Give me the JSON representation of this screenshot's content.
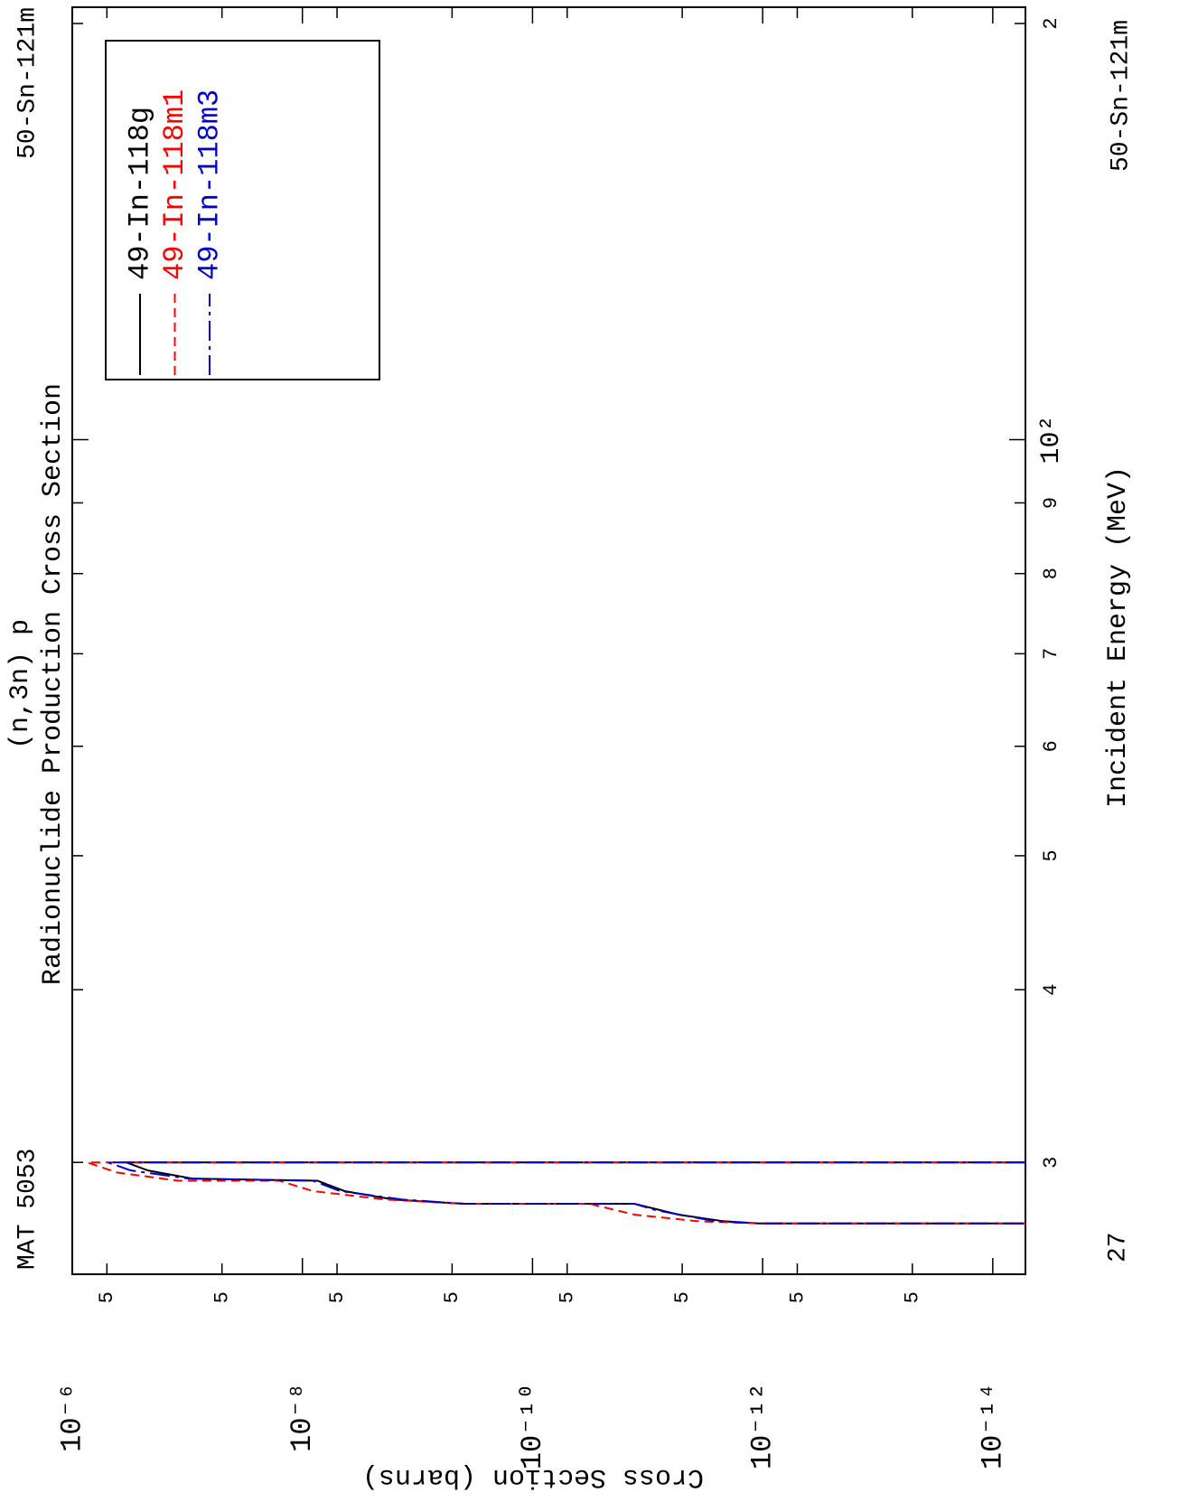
{
  "chart_data": {
    "type": "line",
    "header_left": "MAT 5053",
    "header_right": "50-Sn-121m",
    "subtitle": "(n,3n) p",
    "title": "Radionuclide Production Cross Section",
    "x_label": "Incident Energy (MeV)",
    "y_label": "Cross Section (barns)",
    "footer_left": "27",
    "footer_right": "50-Sn-121m",
    "log_x": true,
    "log_y": true,
    "legend": "top right",
    "xlim": [
      24.9,
      205.5
    ],
    "ylim": [
      5.2e-15,
      1e-06
    ],
    "xticks": [
      {
        "value": 30,
        "label": "3"
      },
      {
        "value": 40,
        "label": "4"
      },
      {
        "value": 50,
        "label": "5"
      },
      {
        "value": 60,
        "label": "6"
      },
      {
        "value": 70,
        "label": "7"
      },
      {
        "value": 80,
        "label": "8"
      },
      {
        "value": 90,
        "label": "9"
      },
      {
        "value": 100,
        "label": "10²"
      },
      {
        "value": 200,
        "label": "2"
      }
    ],
    "yticks": [
      {
        "value": 1e-06,
        "label": "10⁻⁶"
      },
      {
        "value": 5e-07,
        "label": "5"
      },
      {
        "value": 5e-08,
        "label": "5"
      },
      {
        "value": 1e-08,
        "label": "10⁻⁸"
      },
      {
        "value": 5e-09,
        "label": "5"
      },
      {
        "value": 5e-10,
        "label": "5"
      },
      {
        "value": 1e-10,
        "label": "10⁻¹⁰"
      },
      {
        "value": 5e-11,
        "label": "5"
      },
      {
        "value": 5e-12,
        "label": "5"
      },
      {
        "value": 1e-12,
        "label": "10⁻¹²"
      },
      {
        "value": 5e-13,
        "label": "5"
      },
      {
        "value": 5e-14,
        "label": "5"
      },
      {
        "value": 1e-14,
        "label": "10⁻¹⁴"
      }
    ],
    "series": [
      {
        "name": "49-In-118g",
        "color": "#000000",
        "line_style": "solid",
        "x": [
          30,
          30,
          29.6,
          29.2,
          29.1,
          28.6,
          28.2,
          28.0,
          28.0,
          27.5,
          27.2,
          27.1,
          27.1
        ],
        "values": [
          5.2e-15,
          3.4e-07,
          2.2e-07,
          9e-08,
          7.4e-09,
          4.3e-09,
          1.6e-09,
          3.9e-10,
          1.3e-11,
          5.4e-12,
          2.2e-12,
          1.07e-12,
          5.2e-15
        ]
      },
      {
        "name": "49-In-118m1",
        "color": "#ff0000",
        "line_style": "dashed",
        "x": [
          30,
          30,
          29.5,
          29.1,
          29.1,
          28.6,
          28.2,
          28.0,
          28.0,
          27.5,
          27.2,
          27.1,
          27.1
        ],
        "values": [
          5.2e-15,
          7.4e-07,
          4.1e-07,
          1.2e-07,
          1.6e-08,
          8.1e-09,
          1.9e-09,
          3.9e-10,
          3.2e-11,
          1.3e-11,
          3.7e-12,
          1.07e-12,
          5.2e-15
        ]
      },
      {
        "name": "49-In-118m3",
        "color": "#0000cc",
        "line_style": "dashdot",
        "x": [
          30,
          30,
          29.6,
          29.2,
          29.1,
          28.6,
          28.2,
          28.0,
          28.0,
          27.7,
          27.2,
          27.1,
          27.1
        ],
        "values": [
          5.2e-15,
          4.9e-07,
          3.1e-07,
          9.8e-08,
          8.1e-09,
          4.7e-09,
          1.35e-09,
          3.9e-10,
          1.3e-11,
          8.4e-12,
          2.6e-12,
          1.07e-12,
          5.2e-15
        ]
      }
    ]
  }
}
